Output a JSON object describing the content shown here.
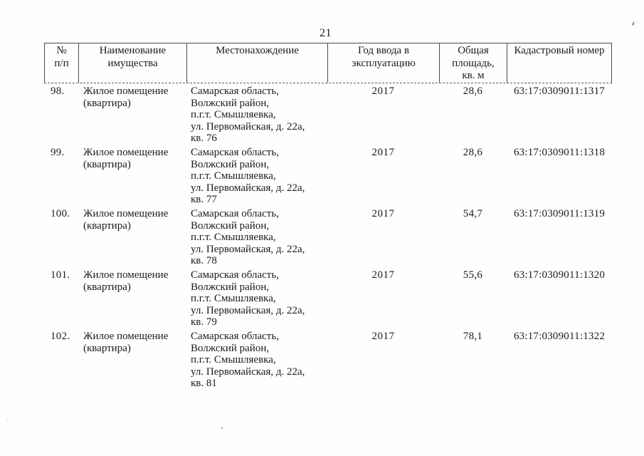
{
  "page": {
    "number": "21"
  },
  "table": {
    "headers": [
      "№\nп/п",
      "Наименование\nимущества",
      "Местонахождение",
      "Год ввода в\nэксплуатацию",
      "Общая\nплощадь,\nкв. м",
      "Кадастровый номер"
    ],
    "rows": [
      {
        "num": "98.",
        "name": "Жилое помещение\n(квартира)",
        "location": "Самарская область,\nВолжский район,\nп.г.т. Смышляевка,\nул. Первомайская, д. 22а,\nкв. 76",
        "year": "2017",
        "area": "28,6",
        "cadastral": "63:17:0309011:1317"
      },
      {
        "num": "99.",
        "name": "Жилое помещение\n(квартира)",
        "location": "Самарская область,\nВолжский район,\nп.г.т. Смышляевка,\nул. Первомайская, д. 22а,\nкв. 77",
        "year": "2017",
        "area": "28,6",
        "cadastral": "63:17:0309011:1318"
      },
      {
        "num": "100.",
        "name": "Жилое помещение\n(квартира)",
        "location": "Самарская область,\nВолжский район,\nп.г.т. Смышляевка,\nул. Первомайская, д. 22а,\nкв. 78",
        "year": "2017",
        "area": "54,7",
        "cadastral": "63:17:0309011:1319"
      },
      {
        "num": "101.",
        "name": "Жилое помещение\n(квартира)",
        "location": "Самарская область,\nВолжский район,\nп.г.т. Смышляевка,\nул. Первомайская, д. 22а,\nкв. 79",
        "year": "2017",
        "area": "55,6",
        "cadastral": "63:17:0309011:1320"
      },
      {
        "num": "102.",
        "name": "Жилое помещение\n(квартира)",
        "location": "Самарская область,\nВолжский район,\nп.г.т. Смышляевка,\nул. Первомайская, д. 22а,\nкв. 81",
        "year": "2017",
        "area": "78,1",
        "cadastral": "63:17:0309011:1322"
      }
    ]
  }
}
